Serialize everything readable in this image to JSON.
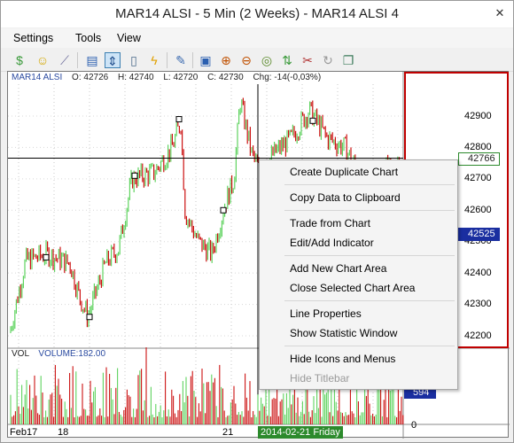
{
  "window": {
    "title": "MAR14 ALSI - 5 Min (2 Weeks) - MAR14 ALSI 4",
    "close_glyph": "✕"
  },
  "menubar": {
    "items": [
      "Settings",
      "Tools",
      "View"
    ]
  },
  "toolbar": {
    "icons": [
      "money-icon",
      "smiley-icon",
      "chart-line-icon",
      "bar-chart-icon",
      "crosshair-icon",
      "book-icon",
      "lightning-icon",
      "edit-icon",
      "window-icon",
      "zoom-in-icon",
      "zoom-out-icon",
      "zoom-reset-icon",
      "up-down-arrows-icon",
      "scissors-icon",
      "refresh-icon",
      "layers-icon"
    ],
    "active": "crosshair-icon"
  },
  "ohlc": {
    "symbol": "MAR14 ALSI",
    "open": "O: 42726",
    "high": "H: 42740",
    "low": "L: 42720",
    "close": "C: 42730",
    "change": "Chg: -14(-0,03%)"
  },
  "volume": {
    "label": "VOL",
    "value": "VOLUME:182.00",
    "current_tag": "594",
    "zero": "0"
  },
  "price_axis": {
    "ticks": [
      "42900",
      "42800",
      "42700",
      "42600",
      "42500",
      "42400",
      "42300",
      "42200"
    ],
    "tick_values": [
      42900,
      42800,
      42700,
      42600,
      42500,
      42400,
      42300,
      42200
    ],
    "current_price": "42766",
    "cursor_price": "42525"
  },
  "time_axis": {
    "labels": [
      "Feb17",
      "18",
      "21"
    ],
    "cursor_date": "2014-02-21 Friday"
  },
  "context_menu": {
    "items": [
      {
        "label": "Create Duplicate Chart",
        "enabled": true
      },
      {
        "label": "Copy Data to Clipboard",
        "enabled": true
      },
      {
        "label": "Trade from Chart",
        "enabled": true
      },
      {
        "label": "Edit/Add Indicator",
        "enabled": true
      },
      {
        "label": "Add New Chart Area",
        "enabled": true
      },
      {
        "label": "Close Selected Chart Area",
        "enabled": true
      },
      {
        "label": "Line Properties",
        "enabled": true
      },
      {
        "label": "Show Statistic Window",
        "enabled": true
      },
      {
        "label": "Hide Icons and Menus",
        "enabled": true
      },
      {
        "label": "Hide Titlebar",
        "enabled": false
      }
    ]
  },
  "colors": {
    "bull": "#5fd35f",
    "bear": "#cc1111",
    "red_box": "#c00000",
    "cursor_tag": "#1a2ea0",
    "current_tag_border": "#2c8a2c"
  }
}
